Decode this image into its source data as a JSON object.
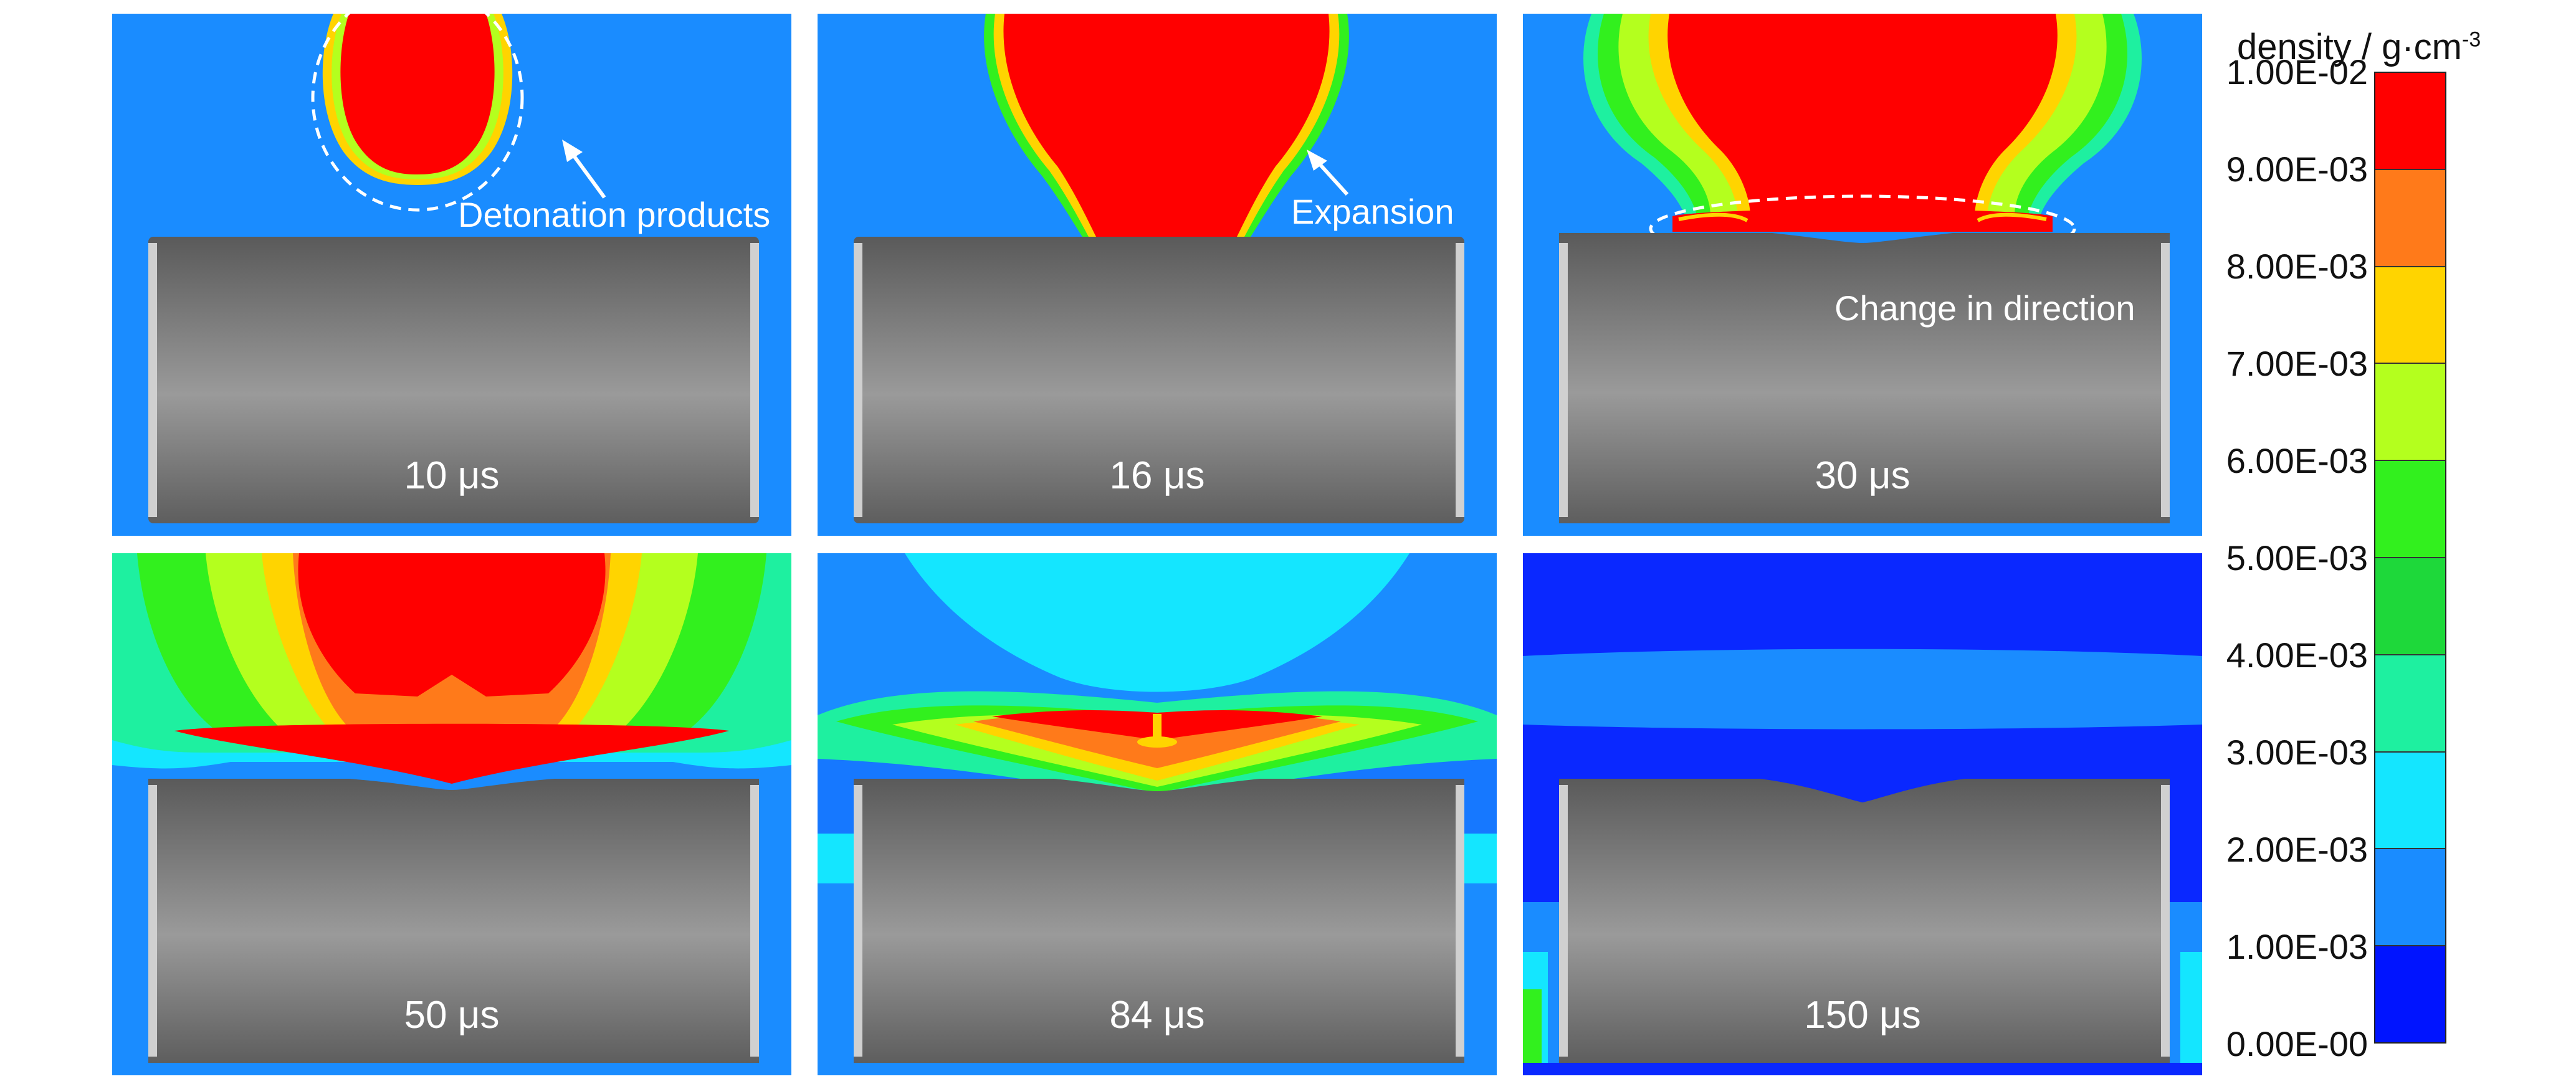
{
  "panels": [
    {
      "time": "10 μs",
      "annotation": "Detonation products"
    },
    {
      "time": "16 μs",
      "annotation": "Expansion"
    },
    {
      "time": "30 μs",
      "annotation": "Change in direction"
    },
    {
      "time": "50 μs"
    },
    {
      "time": "84 μs"
    },
    {
      "time": "150 μs"
    }
  ],
  "legend": {
    "title": "density / g·cm",
    "title_exponent": "-3",
    "ticks": [
      "1.00E-02",
      "9.00E-03",
      "8.00E-03",
      "7.00E-03",
      "6.00E-03",
      "5.00E-03",
      "4.00E-03",
      "3.00E-03",
      "2.00E-03",
      "1.00E-03",
      "0.00E-00"
    ],
    "colors": [
      "#ff0000",
      "#ff7a1a",
      "#ffd400",
      "#b4ff1e",
      "#32f01e",
      "#1ed83a",
      "#1ef0a0",
      "#14e6ff",
      "#1a8cff",
      "#0014ff"
    ]
  }
}
